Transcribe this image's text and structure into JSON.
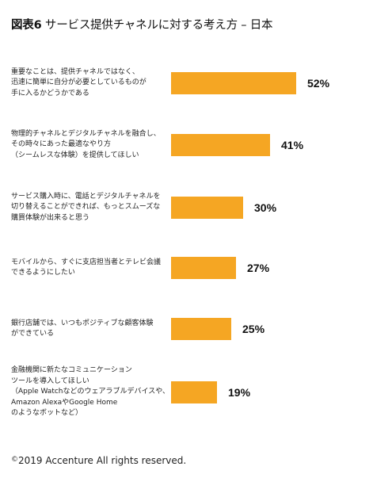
{
  "title": {
    "strong": "図表6",
    "rest": "サービス提供チャネルに対する考え方 – 日本"
  },
  "footer": {
    "copyright_symbol": "©",
    "text": "2019 Accenture All rights reserved."
  },
  "colors": {
    "bar": "#f5a623"
  },
  "chart_data": {
    "type": "bar",
    "orientation": "horizontal",
    "title": "サービス提供チャネルに対する考え方 – 日本",
    "categories": [
      [
        "重要なことは、提供チャネルではなく、",
        "迅速に簡単に自分が必要としているものが",
        "手に入るかどうかである"
      ],
      [
        "物理的チャネルとデジタルチャネルを融合し、",
        "その時々にあった最適なやり方",
        "（シームレスな体験）を提供してほしい"
      ],
      [
        "サービス購入時に、電話とデジタルチャネルを",
        "切り替えることができれば、もっとスムーズな",
        "購買体験が出来ると思う"
      ],
      [
        "モバイルから、すぐに支店担当者とテレビ会議",
        "できるようにしたい"
      ],
      [
        "銀行店舗では、いつもポジティブな顧客体験",
        "ができている"
      ],
      [
        "金融機関に新たなコミュニケーション",
        "ツールを導入してほしい",
        "（Apple Watchなどのウェアラブルデバイスや、",
        "Amazon AlexaやGoogle Home",
        "のようなボットなど）"
      ]
    ],
    "values": [
      52,
      41,
      30,
      27,
      25,
      19
    ],
    "value_labels": [
      "52%",
      "41%",
      "30%",
      "27%",
      "25%",
      "19%"
    ],
    "unit": "%",
    "xlim": [
      0,
      60
    ],
    "grid": false,
    "legend": "none"
  }
}
